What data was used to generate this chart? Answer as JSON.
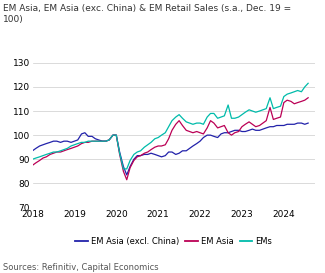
{
  "title": "EM Asia, EM Asia (exc. China) & EM Retail Sales (s.a., Dec. 19 =\n100)",
  "source": "Sources: Refinitiv, Capital Economics",
  "ylim": [
    70,
    130
  ],
  "yticks": [
    70,
    80,
    90,
    100,
    110,
    120,
    130
  ],
  "xlim_start": 2018.0,
  "xlim_end": 2024.75,
  "xtick_labels": [
    "2018",
    "2019",
    "2020",
    "2021",
    "2022",
    "2023",
    "2024"
  ],
  "xtick_positions": [
    2018,
    2019,
    2020,
    2021,
    2022,
    2023,
    2024
  ],
  "colors": {
    "em_asia_excl_china": "#2222aa",
    "em_asia": "#bb0055",
    "ems": "#00bbaa"
  },
  "legend": [
    "EM Asia (excl. China)",
    "EM Asia",
    "EMs"
  ],
  "em_asia_excl_china": [
    [
      2018.0,
      93.5
    ],
    [
      2018.08,
      94.5
    ],
    [
      2018.17,
      95.5
    ],
    [
      2018.25,
      96.0
    ],
    [
      2018.33,
      96.5
    ],
    [
      2018.42,
      97.0
    ],
    [
      2018.5,
      97.5
    ],
    [
      2018.58,
      97.5
    ],
    [
      2018.67,
      97.0
    ],
    [
      2018.75,
      97.5
    ],
    [
      2018.83,
      97.5
    ],
    [
      2018.92,
      97.0
    ],
    [
      2019.0,
      97.5
    ],
    [
      2019.08,
      98.0
    ],
    [
      2019.17,
      100.5
    ],
    [
      2019.25,
      101.0
    ],
    [
      2019.33,
      99.5
    ],
    [
      2019.42,
      99.5
    ],
    [
      2019.5,
      98.5
    ],
    [
      2019.58,
      98.0
    ],
    [
      2019.67,
      97.5
    ],
    [
      2019.75,
      97.5
    ],
    [
      2019.83,
      98.0
    ],
    [
      2019.92,
      100.0
    ],
    [
      2020.0,
      100.0
    ],
    [
      2020.08,
      93.0
    ],
    [
      2020.17,
      87.0
    ],
    [
      2020.25,
      83.5
    ],
    [
      2020.33,
      87.0
    ],
    [
      2020.42,
      90.0
    ],
    [
      2020.5,
      91.5
    ],
    [
      2020.58,
      91.5
    ],
    [
      2020.67,
      92.0
    ],
    [
      2020.75,
      92.0
    ],
    [
      2020.83,
      92.5
    ],
    [
      2020.92,
      92.0
    ],
    [
      2021.0,
      91.5
    ],
    [
      2021.08,
      91.0
    ],
    [
      2021.17,
      91.5
    ],
    [
      2021.25,
      93.0
    ],
    [
      2021.33,
      93.0
    ],
    [
      2021.42,
      92.0
    ],
    [
      2021.5,
      92.5
    ],
    [
      2021.58,
      93.5
    ],
    [
      2021.67,
      93.5
    ],
    [
      2021.75,
      94.5
    ],
    [
      2021.83,
      95.5
    ],
    [
      2021.92,
      96.5
    ],
    [
      2022.0,
      97.5
    ],
    [
      2022.08,
      99.0
    ],
    [
      2022.17,
      100.0
    ],
    [
      2022.25,
      100.0
    ],
    [
      2022.33,
      99.5
    ],
    [
      2022.42,
      99.0
    ],
    [
      2022.5,
      100.5
    ],
    [
      2022.58,
      101.0
    ],
    [
      2022.67,
      101.0
    ],
    [
      2022.75,
      101.5
    ],
    [
      2022.83,
      102.0
    ],
    [
      2022.92,
      102.0
    ],
    [
      2023.0,
      101.5
    ],
    [
      2023.08,
      101.5
    ],
    [
      2023.17,
      102.0
    ],
    [
      2023.25,
      102.5
    ],
    [
      2023.33,
      102.0
    ],
    [
      2023.42,
      102.0
    ],
    [
      2023.5,
      102.5
    ],
    [
      2023.58,
      103.0
    ],
    [
      2023.67,
      103.5
    ],
    [
      2023.75,
      103.5
    ],
    [
      2023.83,
      104.0
    ],
    [
      2023.92,
      104.0
    ],
    [
      2024.0,
      104.0
    ],
    [
      2024.08,
      104.5
    ],
    [
      2024.17,
      104.5
    ],
    [
      2024.25,
      104.5
    ],
    [
      2024.33,
      105.0
    ],
    [
      2024.42,
      105.0
    ],
    [
      2024.5,
      104.5
    ],
    [
      2024.58,
      105.0
    ]
  ],
  "em_asia": [
    [
      2018.0,
      87.5
    ],
    [
      2018.08,
      88.5
    ],
    [
      2018.17,
      89.5
    ],
    [
      2018.25,
      90.5
    ],
    [
      2018.33,
      91.0
    ],
    [
      2018.42,
      92.0
    ],
    [
      2018.5,
      92.5
    ],
    [
      2018.58,
      93.0
    ],
    [
      2018.67,
      93.0
    ],
    [
      2018.75,
      93.5
    ],
    [
      2018.83,
      94.0
    ],
    [
      2018.92,
      94.5
    ],
    [
      2019.0,
      95.0
    ],
    [
      2019.08,
      95.5
    ],
    [
      2019.17,
      96.5
    ],
    [
      2019.25,
      97.0
    ],
    [
      2019.33,
      97.0
    ],
    [
      2019.42,
      97.5
    ],
    [
      2019.5,
      97.5
    ],
    [
      2019.58,
      97.5
    ],
    [
      2019.67,
      97.5
    ],
    [
      2019.75,
      97.5
    ],
    [
      2019.83,
      98.0
    ],
    [
      2019.92,
      100.0
    ],
    [
      2020.0,
      100.0
    ],
    [
      2020.08,
      92.0
    ],
    [
      2020.17,
      85.0
    ],
    [
      2020.25,
      81.5
    ],
    [
      2020.33,
      86.5
    ],
    [
      2020.42,
      89.5
    ],
    [
      2020.5,
      91.0
    ],
    [
      2020.58,
      91.5
    ],
    [
      2020.67,
      92.5
    ],
    [
      2020.75,
      93.0
    ],
    [
      2020.83,
      94.0
    ],
    [
      2020.92,
      95.0
    ],
    [
      2021.0,
      95.5
    ],
    [
      2021.08,
      95.5
    ],
    [
      2021.17,
      96.0
    ],
    [
      2021.25,
      98.5
    ],
    [
      2021.33,
      102.0
    ],
    [
      2021.42,
      104.5
    ],
    [
      2021.5,
      106.0
    ],
    [
      2021.58,
      104.0
    ],
    [
      2021.67,
      102.0
    ],
    [
      2021.75,
      101.5
    ],
    [
      2021.83,
      101.0
    ],
    [
      2021.92,
      101.5
    ],
    [
      2022.0,
      101.0
    ],
    [
      2022.08,
      100.5
    ],
    [
      2022.17,
      103.0
    ],
    [
      2022.25,
      106.0
    ],
    [
      2022.33,
      105.0
    ],
    [
      2022.42,
      103.0
    ],
    [
      2022.5,
      103.5
    ],
    [
      2022.58,
      104.0
    ],
    [
      2022.67,
      101.0
    ],
    [
      2022.75,
      100.0
    ],
    [
      2022.83,
      101.0
    ],
    [
      2022.92,
      101.5
    ],
    [
      2023.0,
      103.5
    ],
    [
      2023.08,
      104.5
    ],
    [
      2023.17,
      105.5
    ],
    [
      2023.25,
      104.5
    ],
    [
      2023.33,
      103.5
    ],
    [
      2023.42,
      104.0
    ],
    [
      2023.5,
      105.0
    ],
    [
      2023.58,
      106.0
    ],
    [
      2023.67,
      111.5
    ],
    [
      2023.75,
      106.5
    ],
    [
      2023.83,
      107.0
    ],
    [
      2023.92,
      107.5
    ],
    [
      2024.0,
      113.5
    ],
    [
      2024.08,
      114.5
    ],
    [
      2024.17,
      114.0
    ],
    [
      2024.25,
      113.0
    ],
    [
      2024.33,
      113.5
    ],
    [
      2024.42,
      114.0
    ],
    [
      2024.5,
      114.5
    ],
    [
      2024.58,
      115.5
    ]
  ],
  "ems": [
    [
      2018.0,
      90.0
    ],
    [
      2018.08,
      90.5
    ],
    [
      2018.17,
      91.0
    ],
    [
      2018.25,
      91.5
    ],
    [
      2018.33,
      92.0
    ],
    [
      2018.42,
      92.5
    ],
    [
      2018.5,
      93.0
    ],
    [
      2018.58,
      93.0
    ],
    [
      2018.67,
      93.5
    ],
    [
      2018.75,
      94.0
    ],
    [
      2018.83,
      94.5
    ],
    [
      2018.92,
      95.5
    ],
    [
      2019.0,
      96.0
    ],
    [
      2019.08,
      96.5
    ],
    [
      2019.17,
      97.0
    ],
    [
      2019.25,
      97.0
    ],
    [
      2019.33,
      97.5
    ],
    [
      2019.42,
      97.5
    ],
    [
      2019.5,
      97.5
    ],
    [
      2019.58,
      97.5
    ],
    [
      2019.67,
      97.5
    ],
    [
      2019.75,
      97.5
    ],
    [
      2019.83,
      98.0
    ],
    [
      2019.92,
      100.0
    ],
    [
      2020.0,
      100.0
    ],
    [
      2020.08,
      92.5
    ],
    [
      2020.17,
      86.0
    ],
    [
      2020.25,
      86.0
    ],
    [
      2020.33,
      89.5
    ],
    [
      2020.42,
      92.0
    ],
    [
      2020.5,
      93.0
    ],
    [
      2020.58,
      93.5
    ],
    [
      2020.67,
      95.0
    ],
    [
      2020.75,
      96.0
    ],
    [
      2020.83,
      97.0
    ],
    [
      2020.92,
      98.5
    ],
    [
      2021.0,
      99.0
    ],
    [
      2021.08,
      100.0
    ],
    [
      2021.17,
      101.0
    ],
    [
      2021.25,
      103.5
    ],
    [
      2021.33,
      106.0
    ],
    [
      2021.42,
      107.5
    ],
    [
      2021.5,
      108.5
    ],
    [
      2021.58,
      107.0
    ],
    [
      2021.67,
      105.5
    ],
    [
      2021.75,
      105.0
    ],
    [
      2021.83,
      104.5
    ],
    [
      2021.92,
      105.0
    ],
    [
      2022.0,
      105.0
    ],
    [
      2022.08,
      104.5
    ],
    [
      2022.17,
      107.5
    ],
    [
      2022.25,
      109.0
    ],
    [
      2022.33,
      109.0
    ],
    [
      2022.42,
      107.0
    ],
    [
      2022.5,
      107.5
    ],
    [
      2022.58,
      108.0
    ],
    [
      2022.67,
      112.5
    ],
    [
      2022.75,
      107.0
    ],
    [
      2022.83,
      107.0
    ],
    [
      2022.92,
      107.5
    ],
    [
      2023.0,
      108.5
    ],
    [
      2023.08,
      109.5
    ],
    [
      2023.17,
      110.5
    ],
    [
      2023.25,
      110.0
    ],
    [
      2023.33,
      109.5
    ],
    [
      2023.42,
      110.0
    ],
    [
      2023.5,
      110.5
    ],
    [
      2023.58,
      111.0
    ],
    [
      2023.67,
      115.5
    ],
    [
      2023.75,
      111.0
    ],
    [
      2023.83,
      111.5
    ],
    [
      2023.92,
      112.0
    ],
    [
      2024.0,
      116.0
    ],
    [
      2024.08,
      117.0
    ],
    [
      2024.17,
      117.5
    ],
    [
      2024.25,
      118.0
    ],
    [
      2024.33,
      118.5
    ],
    [
      2024.42,
      118.0
    ],
    [
      2024.5,
      120.0
    ],
    [
      2024.58,
      121.5
    ]
  ]
}
